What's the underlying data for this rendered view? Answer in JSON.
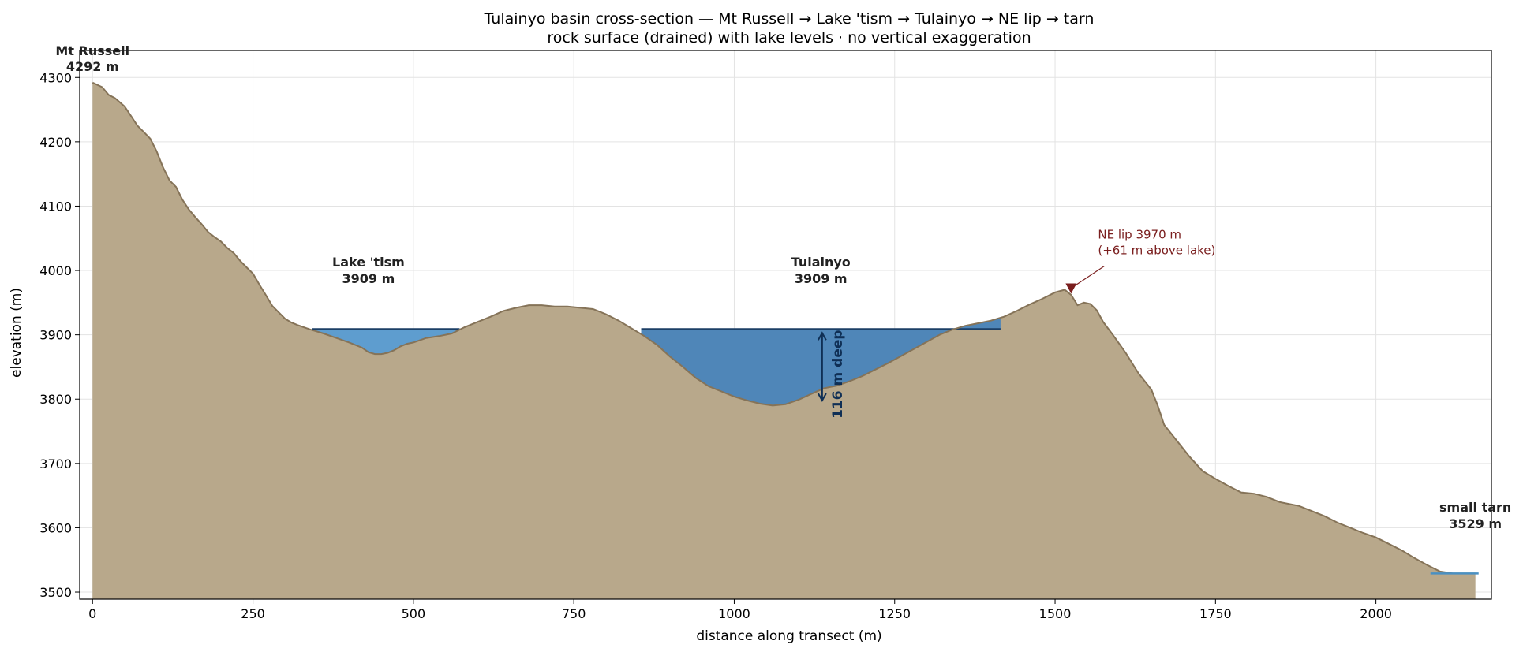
{
  "chart_data": {
    "type": "area",
    "title": "Tulainyo basin cross-section — Mt Russell → Lake 'tism → Tulainyo → NE lip → tarn",
    "subtitle": "rock surface (drained) with lake levels · no vertical exaggeration",
    "xlabel": "distance along transect (m)",
    "ylabel": "elevation (m)",
    "xlim": [
      -20,
      2180
    ],
    "ylim": [
      3489,
      4342
    ],
    "xticks": [
      0,
      250,
      500,
      750,
      1000,
      1250,
      1500,
      1750,
      2000
    ],
    "yticks": [
      3500,
      3600,
      3700,
      3800,
      3900,
      4000,
      4100,
      4200,
      4300
    ],
    "grid": true,
    "colors": {
      "rock_fill": "#b8a88b",
      "rock_line": "#857358",
      "lake_tism": "#5e9dcf",
      "lake_tulainyo": "#4f86b8",
      "lake_line": "#1c3f66",
      "tarn": "#4a90c2",
      "lip_marker": "#7a1e1e",
      "depth_arrow": "#0f2f55"
    },
    "terrain": {
      "x": [
        0,
        15,
        25,
        35,
        50,
        60,
        70,
        80,
        90,
        100,
        110,
        120,
        130,
        140,
        150,
        160,
        170,
        180,
        190,
        200,
        210,
        220,
        230,
        240,
        250,
        260,
        270,
        280,
        290,
        300,
        310,
        320,
        340,
        360,
        380,
        400,
        420,
        430,
        440,
        450,
        460,
        470,
        480,
        490,
        500,
        520,
        540,
        560,
        580,
        600,
        620,
        640,
        660,
        680,
        700,
        720,
        740,
        760,
        780,
        800,
        820,
        840,
        860,
        880,
        900,
        920,
        940,
        960,
        980,
        1000,
        1020,
        1040,
        1060,
        1080,
        1100,
        1120,
        1140,
        1160,
        1180,
        1200,
        1220,
        1240,
        1260,
        1280,
        1300,
        1320,
        1340,
        1360,
        1380,
        1400,
        1420,
        1440,
        1460,
        1480,
        1500,
        1515,
        1525,
        1535,
        1545,
        1555,
        1565,
        1575,
        1590,
        1610,
        1630,
        1650,
        1660,
        1670,
        1690,
        1710,
        1730,
        1750,
        1770,
        1790,
        1810,
        1830,
        1850,
        1870,
        1880,
        1900,
        1920,
        1940,
        1960,
        1980,
        2000,
        2020,
        2040,
        2060,
        2080,
        2100,
        2120,
        2140,
        2155
      ],
      "y": [
        4292,
        4285,
        4273,
        4268,
        4255,
        4240,
        4225,
        4215,
        4205,
        4185,
        4160,
        4140,
        4130,
        4110,
        4095,
        4083,
        4072,
        4060,
        4052,
        4045,
        4035,
        4027,
        4015,
        4005,
        3995,
        3978,
        3962,
        3945,
        3935,
        3925,
        3919,
        3915,
        3908,
        3902,
        3895,
        3888,
        3880,
        3873,
        3870,
        3870,
        3872,
        3876,
        3882,
        3886,
        3888,
        3895,
        3898,
        3902,
        3912,
        3920,
        3928,
        3937,
        3942,
        3946,
        3946,
        3944,
        3944,
        3942,
        3940,
        3932,
        3922,
        3910,
        3898,
        3884,
        3866,
        3850,
        3833,
        3820,
        3812,
        3804,
        3798,
        3793,
        3790,
        3792,
        3799,
        3808,
        3817,
        3821,
        3828,
        3836,
        3846,
        3856,
        3867,
        3878,
        3889,
        3900,
        3908,
        3914,
        3918,
        3922,
        3928,
        3937,
        3947,
        3956,
        3966,
        3970,
        3962,
        3946,
        3950,
        3948,
        3938,
        3920,
        3900,
        3872,
        3840,
        3815,
        3790,
        3760,
        3735,
        3710,
        3688,
        3676,
        3665,
        3655,
        3653,
        3648,
        3640,
        3636,
        3634,
        3626,
        3618,
        3608,
        3600,
        3592,
        3585,
        3575,
        3565,
        3553,
        3542,
        3532,
        3529,
        3529,
        3529
      ]
    },
    "lakes": [
      {
        "name": "Lake 'tism",
        "level": 3909,
        "x_start": 342,
        "x_end": 572,
        "label_line1": "Lake 'tism",
        "label_line2": "3909 m"
      },
      {
        "name": "Tulainyo",
        "level": 3909,
        "x_start": 855,
        "x_end": 1415,
        "label_line1": "Tulainyo",
        "label_line2": "3909 m"
      }
    ],
    "tarn": {
      "level": 3529,
      "x_start": 2085,
      "x_end": 2160,
      "label_line1": "small tarn",
      "label_line2": "3529 m"
    },
    "summit": {
      "x": 0,
      "y": 4292,
      "label_line1": "Mt Russell",
      "label_line2": "4292 m"
    },
    "ne_lip": {
      "x": 1525,
      "y": 3970,
      "label_line1": "NE lip 3970 m",
      "label_line2": "(+61 m above lake)"
    },
    "depth": {
      "x": 1137,
      "top": 3909,
      "bottom": 3793,
      "label": "116 m deep"
    }
  }
}
